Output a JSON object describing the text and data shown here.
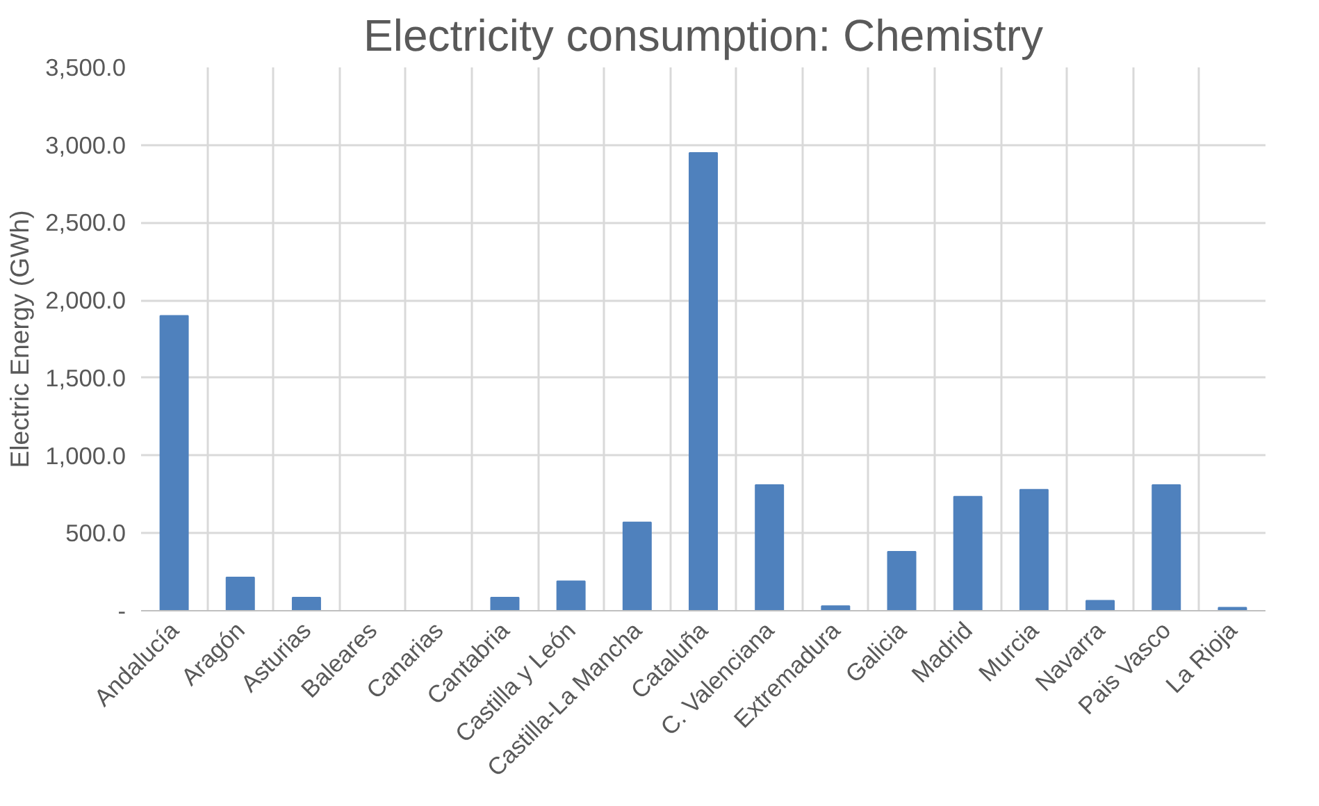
{
  "chart_data": {
    "type": "bar",
    "title": "Electricity consumption: Chemistry",
    "ylabel": "Electric Energy (GWh)",
    "categories": [
      "Andalucía",
      "Aragón",
      "Asturias",
      "Baleares",
      "Canarias",
      "Cantabria",
      "Castilla y León",
      "Castilla-La Mancha",
      "Cataluña",
      "C. Valenciana",
      "Extremadura",
      "Galicia",
      "Madrid",
      "Murcia",
      "Navarra",
      "Pais Vasco",
      "La Rioja"
    ],
    "values": [
      1900,
      215,
      85,
      0,
      0,
      85,
      190,
      570,
      2950,
      810,
      30,
      380,
      735,
      780,
      65,
      810,
      20
    ],
    "color": "#4f81bd",
    "ylim": [
      0,
      3500
    ],
    "yticks": [
      {
        "value": 0,
        "label": "-"
      },
      {
        "value": 500,
        "label": "500.0"
      },
      {
        "value": 1000,
        "label": "1,000.0"
      },
      {
        "value": 1500,
        "label": "1,500.0"
      },
      {
        "value": 2000,
        "label": "2,000.0"
      },
      {
        "value": 2500,
        "label": "2,500.0"
      },
      {
        "value": 3000,
        "label": "3,000.0"
      },
      {
        "value": 3500,
        "label": "3,500.0"
      }
    ],
    "grid": true
  }
}
